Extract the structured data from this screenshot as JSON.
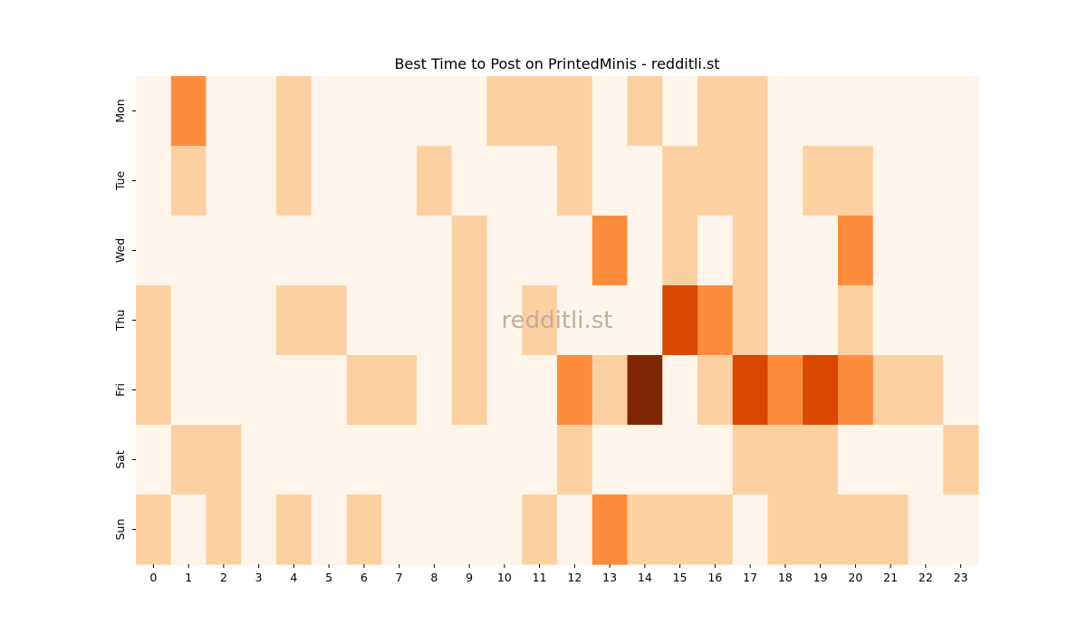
{
  "chart_data": {
    "type": "heatmap",
    "title": "Best Time to Post on PrintedMinis - redditli.st",
    "xlabel": "",
    "ylabel": "",
    "x_categories": [
      "0",
      "1",
      "2",
      "3",
      "4",
      "5",
      "6",
      "7",
      "8",
      "9",
      "10",
      "11",
      "12",
      "13",
      "14",
      "15",
      "16",
      "17",
      "18",
      "19",
      "20",
      "21",
      "22",
      "23"
    ],
    "y_categories": [
      "Mon",
      "Tue",
      "Wed",
      "Thu",
      "Fri",
      "Sat",
      "Sun"
    ],
    "values": [
      [
        0,
        2,
        0,
        0,
        1,
        0,
        0,
        0,
        0,
        0,
        1,
        1,
        1,
        0,
        1,
        0,
        1,
        1,
        0,
        0,
        0,
        0,
        0,
        0
      ],
      [
        0,
        1,
        0,
        0,
        1,
        0,
        0,
        0,
        1,
        0,
        0,
        0,
        1,
        0,
        0,
        1,
        1,
        1,
        0,
        1,
        1,
        0,
        0,
        0
      ],
      [
        0,
        0,
        0,
        0,
        0,
        0,
        0,
        0,
        0,
        1,
        0,
        0,
        0,
        2,
        0,
        1,
        0,
        1,
        0,
        0,
        2,
        0,
        0,
        0
      ],
      [
        1,
        0,
        0,
        0,
        1,
        1,
        0,
        0,
        0,
        1,
        0,
        1,
        0,
        0,
        0,
        3,
        2,
        1,
        0,
        0,
        1,
        0,
        0,
        0
      ],
      [
        1,
        0,
        0,
        0,
        0,
        0,
        1,
        1,
        0,
        1,
        0,
        0,
        2,
        1,
        4,
        0,
        1,
        3,
        2,
        3,
        2,
        1,
        1,
        0
      ],
      [
        0,
        1,
        1,
        0,
        0,
        0,
        0,
        0,
        0,
        0,
        0,
        0,
        1,
        0,
        0,
        0,
        0,
        1,
        1,
        1,
        0,
        0,
        0,
        1
      ],
      [
        1,
        0,
        1,
        0,
        1,
        0,
        1,
        0,
        0,
        0,
        0,
        1,
        0,
        2,
        1,
        1,
        1,
        0,
        1,
        1,
        1,
        1,
        0,
        0
      ]
    ],
    "color_scale": [
      "#fff5eb",
      "#fdd0a2",
      "#fd8d3c",
      "#d94801",
      "#7f2704"
    ],
    "watermark": "redditli.st",
    "colorbar": false,
    "grid": false
  }
}
